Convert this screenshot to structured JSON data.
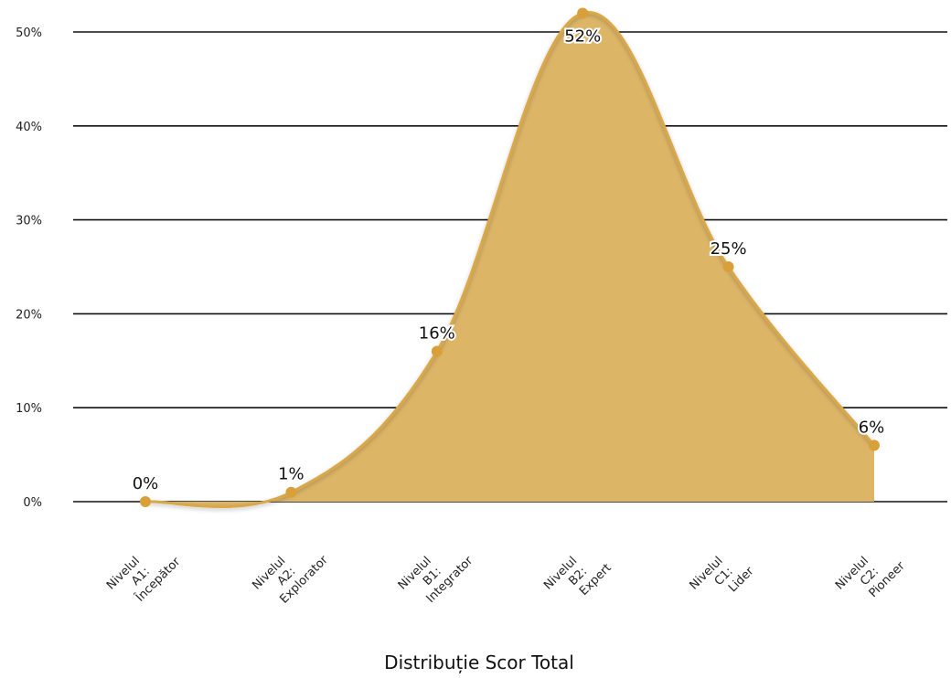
{
  "chart_data": {
    "type": "area",
    "title": "",
    "xlabel": "Distribuție Scor Total",
    "ylabel": "",
    "ylim": [
      0,
      50
    ],
    "yticks": [
      0,
      10,
      20,
      30,
      40,
      50
    ],
    "ytick_suffix": "%",
    "grid": true,
    "legend": "none",
    "categories": [
      [
        "Nivelul",
        "A1:",
        "Începător"
      ],
      [
        "Nivelul",
        "A2:",
        "Explorator"
      ],
      [
        "Nivelul",
        "B1:",
        "Integrator"
      ],
      [
        "Nivelul",
        "B2:",
        "Expert"
      ],
      [
        "Nivelul",
        "C1:",
        "Lider"
      ],
      [
        "Nivelul",
        "C2:",
        "Pioneer"
      ]
    ],
    "series": [
      {
        "values": [
          0,
          1,
          16,
          52,
          25,
          6
        ],
        "labels": [
          "0%",
          "1%",
          "16%",
          "52%",
          "25%",
          "6%"
        ]
      }
    ],
    "colors": {
      "fill": "#DDB567",
      "line": "#D9A84A",
      "marker": "#D9A03A",
      "grid": "#111111"
    }
  }
}
